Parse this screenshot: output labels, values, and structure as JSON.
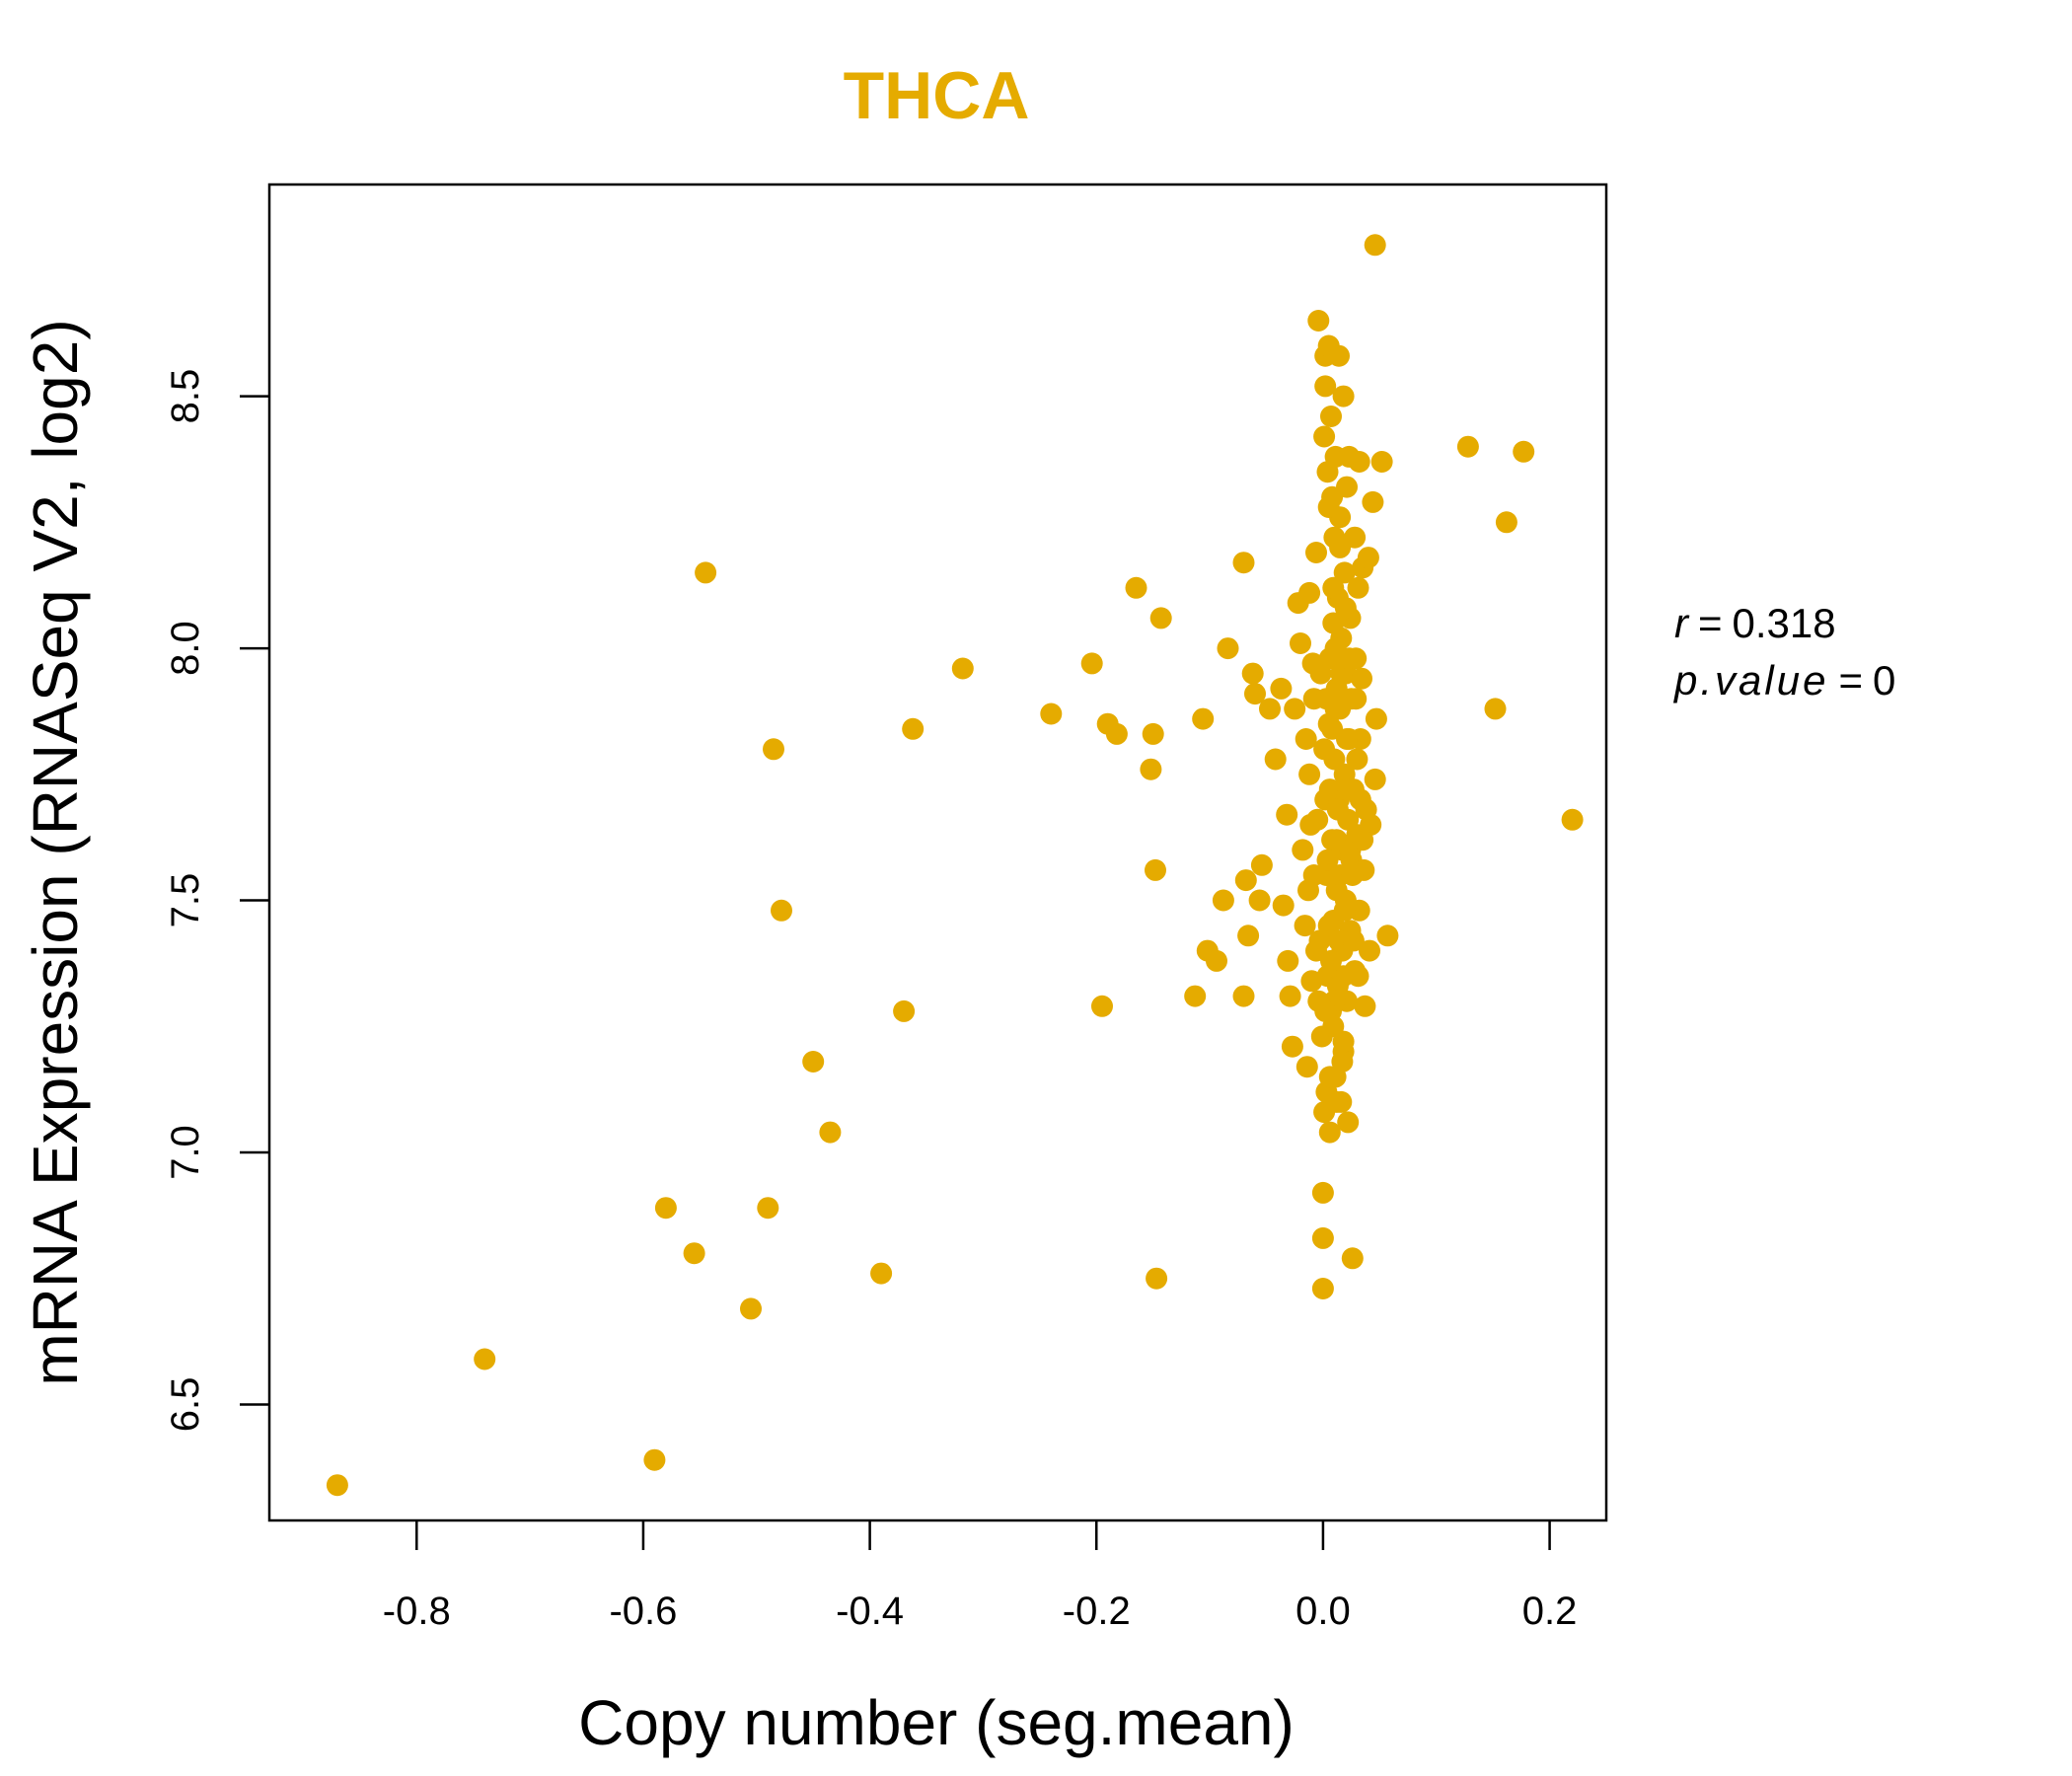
{
  "chart_data": {
    "type": "scatter",
    "title": "THCA",
    "xlabel": "Copy number (seg.mean)",
    "ylabel": "mRNA Expression (RNASeq V2, log2)",
    "xlim": [
      -0.93,
      0.25
    ],
    "ylim": [
      6.27,
      8.92
    ],
    "xticks": [
      -0.8,
      -0.6,
      -0.4,
      -0.2,
      0.0,
      0.2
    ],
    "xtick_labels": [
      "-0.8",
      "-0.6",
      "-0.4",
      "-0.2",
      "0.0",
      "0.2"
    ],
    "yticks": [
      6.5,
      7.0,
      7.5,
      8.0,
      8.5
    ],
    "ytick_labels": [
      "6.5",
      "7.0",
      "7.5",
      "8.0",
      "8.5"
    ],
    "grid": false,
    "point_color": "#E5AB00",
    "stats": {
      "r_label": "r",
      "r_value": "0.318",
      "p_label": "p.value",
      "p_value": "0"
    },
    "points": [
      [
        -0.87,
        6.34
      ],
      [
        -0.74,
        6.59
      ],
      [
        -0.59,
        6.39
      ],
      [
        -0.58,
        6.89
      ],
      [
        -0.555,
        6.8
      ],
      [
        -0.545,
        8.15
      ],
      [
        -0.505,
        6.69
      ],
      [
        -0.49,
        6.89
      ],
      [
        -0.485,
        7.8
      ],
      [
        -0.478,
        7.48
      ],
      [
        -0.45,
        7.18
      ],
      [
        -0.435,
        7.04
      ],
      [
        -0.39,
        6.76
      ],
      [
        -0.37,
        7.28
      ],
      [
        -0.362,
        7.84
      ],
      [
        -0.318,
        7.96
      ],
      [
        -0.24,
        7.87
      ],
      [
        -0.204,
        7.97
      ],
      [
        -0.195,
        7.29
      ],
      [
        -0.19,
        7.85
      ],
      [
        -0.182,
        7.83
      ],
      [
        -0.165,
        8.12
      ],
      [
        -0.152,
        7.76
      ],
      [
        -0.15,
        7.83
      ],
      [
        -0.148,
        7.56
      ],
      [
        -0.147,
        6.75
      ],
      [
        -0.143,
        8.06
      ],
      [
        -0.113,
        7.31
      ],
      [
        -0.106,
        7.86
      ],
      [
        -0.102,
        7.4
      ],
      [
        -0.094,
        7.38
      ],
      [
        -0.088,
        7.5
      ],
      [
        -0.084,
        8.0
      ],
      [
        -0.07,
        8.17
      ],
      [
        -0.07,
        7.31
      ],
      [
        -0.068,
        7.54
      ],
      [
        -0.066,
        7.43
      ],
      [
        -0.062,
        7.95
      ],
      [
        -0.06,
        7.91
      ],
      [
        -0.056,
        7.5
      ],
      [
        -0.054,
        7.57
      ],
      [
        -0.047,
        7.88
      ],
      [
        -0.042,
        7.78
      ],
      [
        -0.037,
        7.92
      ],
      [
        -0.035,
        7.49
      ],
      [
        -0.032,
        7.67
      ],
      [
        -0.031,
        7.38
      ],
      [
        -0.029,
        7.31
      ],
      [
        -0.027,
        7.21
      ],
      [
        -0.025,
        7.88
      ],
      [
        -0.022,
        8.09
      ],
      [
        -0.02,
        8.01
      ],
      [
        -0.018,
        7.6
      ],
      [
        -0.016,
        7.45
      ],
      [
        -0.014,
        7.17
      ],
      [
        -0.012,
        8.11
      ],
      [
        -0.01,
        7.34
      ],
      [
        -0.008,
        7.9
      ],
      [
        -0.006,
        8.19
      ],
      [
        -0.005,
        7.66
      ],
      [
        -0.004,
        8.65
      ],
      [
        -0.003,
        7.42
      ],
      [
        -0.002,
        7.95
      ],
      [
        -0.001,
        7.23
      ],
      [
        0.0,
        6.73
      ],
      [
        0.0,
        6.83
      ],
      [
        0.0,
        6.92
      ],
      [
        0.001,
        7.08
      ],
      [
        0.001,
        8.42
      ],
      [
        0.002,
        8.52
      ],
      [
        0.002,
        8.58
      ],
      [
        0.002,
        7.7
      ],
      [
        0.003,
        7.55
      ],
      [
        0.003,
        7.12
      ],
      [
        0.004,
        7.35
      ],
      [
        0.004,
        8.35
      ],
      [
        0.005,
        8.6
      ],
      [
        0.005,
        7.85
      ],
      [
        0.006,
        7.04
      ],
      [
        0.006,
        7.98
      ],
      [
        0.007,
        8.46
      ],
      [
        0.007,
        7.28
      ],
      [
        0.008,
        8.3
      ],
      [
        0.008,
        7.62
      ],
      [
        0.009,
        8.05
      ],
      [
        0.009,
        7.46
      ],
      [
        0.01,
        8.22
      ],
      [
        0.01,
        7.78
      ],
      [
        0.011,
        7.15
      ],
      [
        0.011,
        8.38
      ],
      [
        0.012,
        7.92
      ],
      [
        0.012,
        7.52
      ],
      [
        0.013,
        8.1
      ],
      [
        0.013,
        7.33
      ],
      [
        0.014,
        8.58
      ],
      [
        0.014,
        7.7
      ],
      [
        0.015,
        8.26
      ],
      [
        0.015,
        7.88
      ],
      [
        0.016,
        7.1
      ],
      [
        0.016,
        8.02
      ],
      [
        0.017,
        7.6
      ],
      [
        0.017,
        7.4
      ],
      [
        0.018,
        8.5
      ],
      [
        0.018,
        7.2
      ],
      [
        0.019,
        8.15
      ],
      [
        0.019,
        7.75
      ],
      [
        0.02,
        7.95
      ],
      [
        0.02,
        7.5
      ],
      [
        0.021,
        8.32
      ],
      [
        0.021,
        7.3
      ],
      [
        0.022,
        7.66
      ],
      [
        0.022,
        7.06
      ],
      [
        0.023,
        8.38
      ],
      [
        0.023,
        7.82
      ],
      [
        0.024,
        8.06
      ],
      [
        0.024,
        7.44
      ],
      [
        0.025,
        7.58
      ],
      [
        0.025,
        7.9
      ],
      [
        0.026,
        6.79
      ],
      [
        0.027,
        7.72
      ],
      [
        0.028,
        8.22
      ],
      [
        0.028,
        7.36
      ],
      [
        0.029,
        7.98
      ],
      [
        0.03,
        7.63
      ],
      [
        0.031,
        8.12
      ],
      [
        0.032,
        8.37
      ],
      [
        0.032,
        7.48
      ],
      [
        0.033,
        7.82
      ],
      [
        0.034,
        7.94
      ],
      [
        0.035,
        8.16
      ],
      [
        0.036,
        7.56
      ],
      [
        0.037,
        7.29
      ],
      [
        0.038,
        7.68
      ],
      [
        0.04,
        8.18
      ],
      [
        0.041,
        7.4
      ],
      [
        0.042,
        7.65
      ],
      [
        0.044,
        8.29
      ],
      [
        0.046,
        7.74
      ],
      [
        0.046,
        8.8
      ],
      [
        0.047,
        7.86
      ],
      [
        0.052,
        8.37
      ],
      [
        0.057,
        7.43
      ],
      [
        0.128,
        8.4
      ],
      [
        0.152,
        7.88
      ],
      [
        0.162,
        8.25
      ],
      [
        0.177,
        8.39
      ],
      [
        0.22,
        7.66
      ],
      [
        0.005,
        7.45
      ],
      [
        0.012,
        7.62
      ],
      [
        0.018,
        7.35
      ],
      [
        0.006,
        7.72
      ],
      [
        0.015,
        7.55
      ],
      [
        0.009,
        7.25
      ],
      [
        0.021,
        7.82
      ],
      [
        0.003,
        7.9
      ],
      [
        0.017,
        7.18
      ],
      [
        0.011,
        8.0
      ],
      [
        0.024,
        7.6
      ],
      [
        0.007,
        7.38
      ],
      [
        0.013,
        7.68
      ],
      [
        0.019,
        7.48
      ],
      [
        0.004,
        7.58
      ],
      [
        0.016,
        7.95
      ],
      [
        0.01,
        7.3
      ],
      [
        0.022,
        7.72
      ],
      [
        0.008,
        7.84
      ],
      [
        0.014,
        7.42
      ],
      [
        -0.012,
        7.75
      ],
      [
        -0.008,
        7.55
      ],
      [
        -0.015,
        7.82
      ],
      [
        -0.006,
        7.4
      ],
      [
        -0.011,
        7.65
      ],
      [
        -0.004,
        7.3
      ],
      [
        -0.009,
        7.97
      ],
      [
        -0.013,
        7.52
      ],
      [
        0.026,
        7.55
      ],
      [
        0.03,
        7.78
      ],
      [
        0.027,
        7.42
      ],
      [
        0.033,
        7.7
      ],
      [
        0.029,
        7.9
      ],
      [
        0.035,
        7.62
      ],
      [
        0.031,
        7.35
      ],
      [
        0.006,
        7.15
      ],
      [
        0.012,
        7.1
      ],
      [
        0.018,
        7.22
      ],
      [
        0.002,
        7.28
      ],
      [
        0.009,
        8.12
      ],
      [
        0.015,
        8.2
      ],
      [
        0.005,
        8.28
      ],
      [
        0.02,
        8.08
      ],
      [
        0.001,
        7.8
      ],
      [
        0.023,
        7.98
      ],
      [
        0.011,
        7.88
      ]
    ]
  }
}
